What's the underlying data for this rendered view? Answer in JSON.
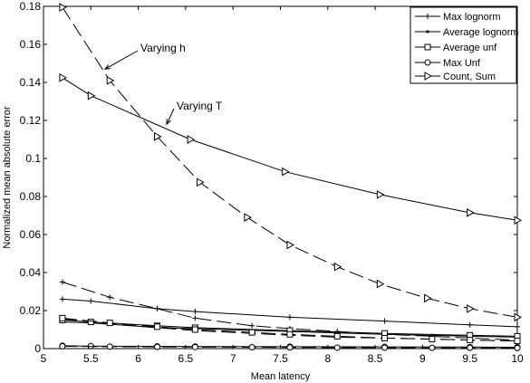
{
  "chart_data": {
    "type": "line",
    "title": "",
    "xlabel": "Mean latency",
    "ylabel": "Normalized mean absolute error",
    "xlim": [
      5,
      10
    ],
    "ylim": [
      0,
      0.18
    ],
    "xticks": [
      5,
      5.5,
      6,
      6.5,
      7,
      7.5,
      8,
      8.5,
      9,
      9.5,
      10
    ],
    "xtick_labels": [
      "5",
      "5.5",
      "6",
      "6.5",
      "7",
      "7.5",
      "8",
      "8.5",
      "9",
      "9.5",
      "10"
    ],
    "yticks": [
      0,
      0.02,
      0.04,
      0.06,
      0.08,
      0.1,
      0.12,
      0.14,
      0.16,
      0.18
    ],
    "ytick_labels": [
      "0",
      "0.02",
      "0.04",
      "0.06",
      "0.08",
      "0.1",
      "0.12",
      "0.14",
      "0.16",
      "0.18"
    ],
    "grid": false,
    "legend_position": "top-right",
    "legend": [
      "Max lognorm",
      "Average lognorm",
      "Average unf",
      "Max Unf",
      "Count, Sum"
    ],
    "annotations": [
      {
        "text": "Varying h",
        "target": [
          5.65,
          0.147
        ]
      },
      {
        "text": "Varying T",
        "target": [
          6.3,
          0.118
        ]
      }
    ],
    "series": [
      {
        "name": "Max lognorm",
        "marker": "plus",
        "dash": "solid",
        "x": [
          5.2,
          5.5,
          6.2,
          6.6,
          7.6,
          8.6,
          9.5,
          10
        ],
        "y": [
          0.026,
          0.025,
          0.021,
          0.0195,
          0.0165,
          0.0145,
          0.0125,
          0.0115
        ]
      },
      {
        "name": "Max lognorm",
        "marker": "plus",
        "dash": "dashed",
        "x": [
          5.2,
          5.7,
          6.2,
          6.6,
          7.2,
          7.6,
          8.1,
          8.6,
          9.1,
          9.5,
          10
        ],
        "y": [
          0.035,
          0.027,
          0.021,
          0.016,
          0.012,
          0.0105,
          0.009,
          0.0075,
          0.0065,
          0.0055,
          0.0045
        ]
      },
      {
        "name": "Average lognorm",
        "marker": "dot",
        "dash": "solid",
        "x": [
          5.2,
          5.5,
          6.2,
          6.6,
          7.6,
          8.6,
          9.5,
          10
        ],
        "y": [
          0.014,
          0.0135,
          0.011,
          0.0105,
          0.009,
          0.0075,
          0.0065,
          0.006
        ]
      },
      {
        "name": "Average lognorm",
        "marker": "dot",
        "dash": "dashed",
        "x": [
          5.2,
          5.7,
          6.2,
          6.6,
          7.2,
          7.6,
          8.1,
          8.6,
          9.1,
          9.5,
          10
        ],
        "y": [
          0.0155,
          0.013,
          0.011,
          0.0095,
          0.008,
          0.007,
          0.006,
          0.0055,
          0.005,
          0.0045,
          0.004
        ]
      },
      {
        "name": "Average unf",
        "marker": "square",
        "dash": "solid",
        "x": [
          5.2,
          5.5,
          6.2,
          6.6,
          7.6,
          8.6,
          9.5,
          10
        ],
        "y": [
          0.015,
          0.014,
          0.012,
          0.011,
          0.0095,
          0.008,
          0.007,
          0.0065
        ]
      },
      {
        "name": "Average unf",
        "marker": "square",
        "dash": "dashed",
        "x": [
          5.2,
          5.7,
          6.2,
          6.6,
          7.2,
          7.6,
          8.1,
          8.6,
          9.1,
          9.5,
          10
        ],
        "y": [
          0.016,
          0.0135,
          0.0115,
          0.01,
          0.0085,
          0.0075,
          0.0065,
          0.0055,
          0.005,
          0.0045,
          0.004
        ]
      },
      {
        "name": "Max Unf",
        "marker": "circle",
        "dash": "solid",
        "x": [
          5.2,
          5.5,
          6.2,
          6.6,
          7.6,
          8.6,
          9.5,
          10
        ],
        "y": [
          0.0015,
          0.0013,
          0.0012,
          0.0011,
          0.001,
          0.0009,
          0.0008,
          0.0007
        ]
      },
      {
        "name": "Max Unf",
        "marker": "circle",
        "dash": "dashed",
        "x": [
          5.2,
          5.7,
          6.2,
          6.6,
          7.2,
          7.6,
          8.1,
          8.6,
          9.1,
          9.5,
          10
        ],
        "y": [
          0.0012,
          0.001,
          0.0009,
          0.0008,
          0.0007,
          0.0006,
          0.0005,
          0.0005,
          0.0004,
          0.0004,
          0.0003
        ]
      },
      {
        "name": "Count, Sum",
        "marker": "triangle-right",
        "dash": "solid",
        "x": [
          5.2,
          5.5,
          6.55,
          7.55,
          8.55,
          9.5,
          10
        ],
        "y": [
          0.1425,
          0.133,
          0.11,
          0.093,
          0.081,
          0.0715,
          0.0675
        ]
      },
      {
        "name": "Count, Sum",
        "marker": "triangle-right",
        "dash": "dashed",
        "x": [
          5.2,
          5.7,
          6.2,
          6.65,
          7.15,
          7.6,
          8.1,
          8.55,
          9.05,
          9.5,
          10
        ],
        "y": [
          0.1795,
          0.141,
          0.1115,
          0.0875,
          0.069,
          0.0545,
          0.043,
          0.034,
          0.0265,
          0.021,
          0.0165
        ]
      }
    ]
  }
}
